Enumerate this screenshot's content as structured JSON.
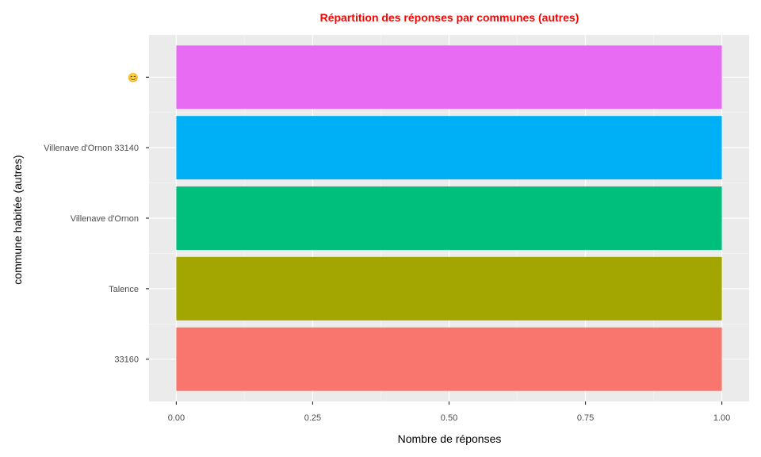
{
  "chart_data": {
    "type": "bar",
    "orientation": "horizontal",
    "title": "Répartition des réponses par communes (autres)",
    "xlabel": "Nombre de réponses",
    "ylabel": "commune habitée (autres)",
    "categories": [
      "33160",
      "Talence",
      "Villenave d'Ornon",
      "Villenave d'Ornon 33140",
      "😊"
    ],
    "values": [
      1,
      1,
      1,
      1,
      1
    ],
    "colors": [
      "#F8766D",
      "#A3A500",
      "#00BF7D",
      "#00B0F6",
      "#E76BF3"
    ],
    "xlim": [
      0,
      1
    ],
    "x_ticks": [
      "0.00",
      "0.25",
      "0.50",
      "0.75",
      "1.00"
    ],
    "grid": true,
    "legend": "none",
    "panel_background": "#EBEBEB"
  }
}
